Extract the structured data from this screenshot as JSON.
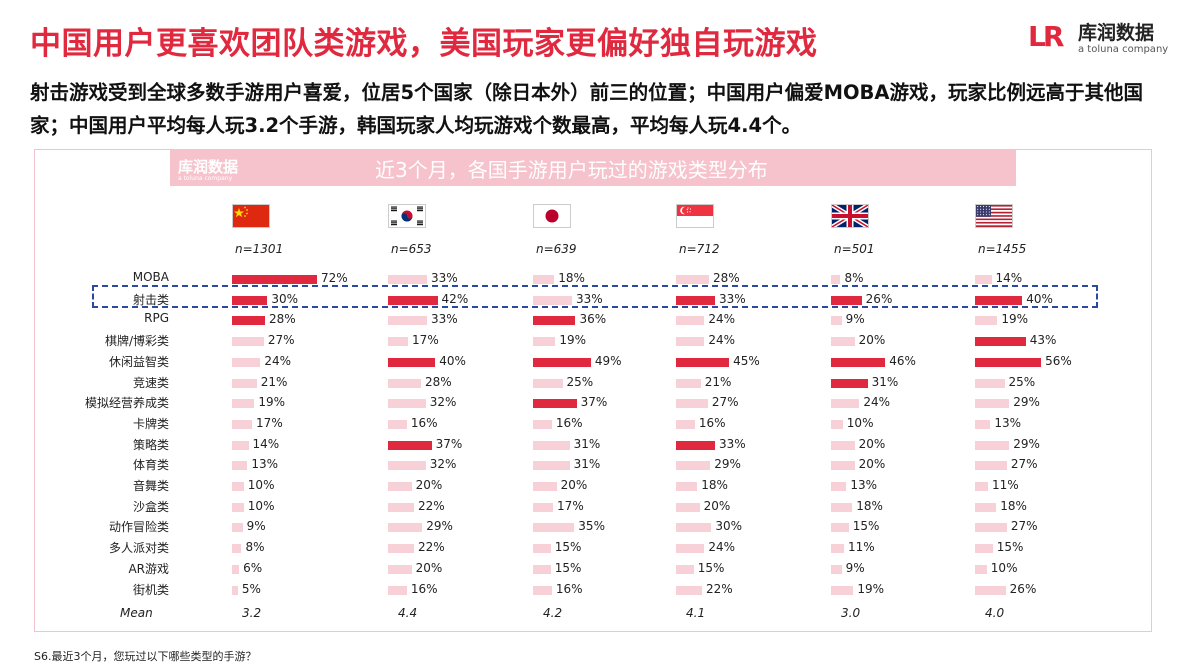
{
  "title": "中国用户更喜欢团队类游戏，美国玩家更偏好独自玩游戏",
  "logo": {
    "mark": "LR",
    "name": "库润数据",
    "sub": "a toluna company"
  },
  "description": "射击游戏受到全球多数手游用户喜爱，位居5个国家（除日本外）前三的位置；中国用户偏爱MOBA游戏，玩家比例远高于其他国家；中国用户平均每人玩3.2个手游，韩国玩家人均玩游戏个数最高，平均每人玩4.4个。",
  "banner": {
    "logo_text": "库润数据",
    "logo_sub": "a toluna company",
    "title": "近3个月，各国手游用户玩过的游戏类型分布"
  },
  "colors": {
    "accent": "#e0283e",
    "top3": "#e0283e",
    "other": "#f8d0d8",
    "highlight": "#2a4aa0"
  },
  "footnote": "S6.最近3个月，您玩过以下哪些类型的手游？",
  "chart_data": {
    "type": "bar",
    "orientation": "horizontal",
    "title": "近3个月，各国手游用户玩过的游戏类型分布",
    "categories": [
      "MOBA",
      "射击类",
      "RPG",
      "棋牌/博彩类",
      "休闲益智类",
      "竞速类",
      "模拟经营养成类",
      "卡牌类",
      "策略类",
      "体育类",
      "音舞类",
      "沙盒类",
      "动作冒险类",
      "多人派对类",
      "AR游戏",
      "街机类"
    ],
    "unit": "%",
    "mean_label": "Mean",
    "highlight_category": "射击类",
    "series": [
      {
        "name": "中国",
        "flag": "cn",
        "n": "n=1301",
        "mean": "3.2",
        "values": [
          72,
          30,
          28,
          27,
          24,
          21,
          19,
          17,
          14,
          13,
          10,
          10,
          9,
          8,
          6,
          5
        ],
        "top3": [
          0,
          1,
          2
        ]
      },
      {
        "name": "韩国",
        "flag": "kr",
        "n": "n=653",
        "mean": "4.4",
        "values": [
          33,
          42,
          33,
          17,
          40,
          28,
          32,
          16,
          37,
          32,
          20,
          22,
          29,
          22,
          20,
          16
        ],
        "top3": [
          1,
          4,
          8
        ]
      },
      {
        "name": "日本",
        "flag": "jp",
        "n": "n=639",
        "mean": "4.2",
        "values": [
          18,
          33,
          36,
          19,
          49,
          25,
          37,
          16,
          31,
          31,
          20,
          17,
          35,
          15,
          15,
          16
        ],
        "top3": [
          2,
          4,
          6
        ]
      },
      {
        "name": "新加坡",
        "flag": "sg",
        "n": "n=712",
        "mean": "4.1",
        "values": [
          28,
          33,
          24,
          24,
          45,
          21,
          27,
          16,
          33,
          29,
          18,
          20,
          30,
          24,
          15,
          22
        ],
        "top3": [
          1,
          4,
          8
        ]
      },
      {
        "name": "英国",
        "flag": "uk",
        "n": "n=501",
        "mean": "3.0",
        "values": [
          8,
          26,
          9,
          20,
          46,
          31,
          24,
          10,
          20,
          20,
          13,
          18,
          15,
          11,
          9,
          19
        ],
        "top3": [
          1,
          4,
          5
        ]
      },
      {
        "name": "美国",
        "flag": "us",
        "n": "n=1455",
        "mean": "4.0",
        "values": [
          14,
          40,
          19,
          43,
          56,
          25,
          29,
          13,
          29,
          27,
          11,
          18,
          27,
          15,
          10,
          26
        ],
        "top3": [
          1,
          3,
          4
        ]
      }
    ]
  }
}
